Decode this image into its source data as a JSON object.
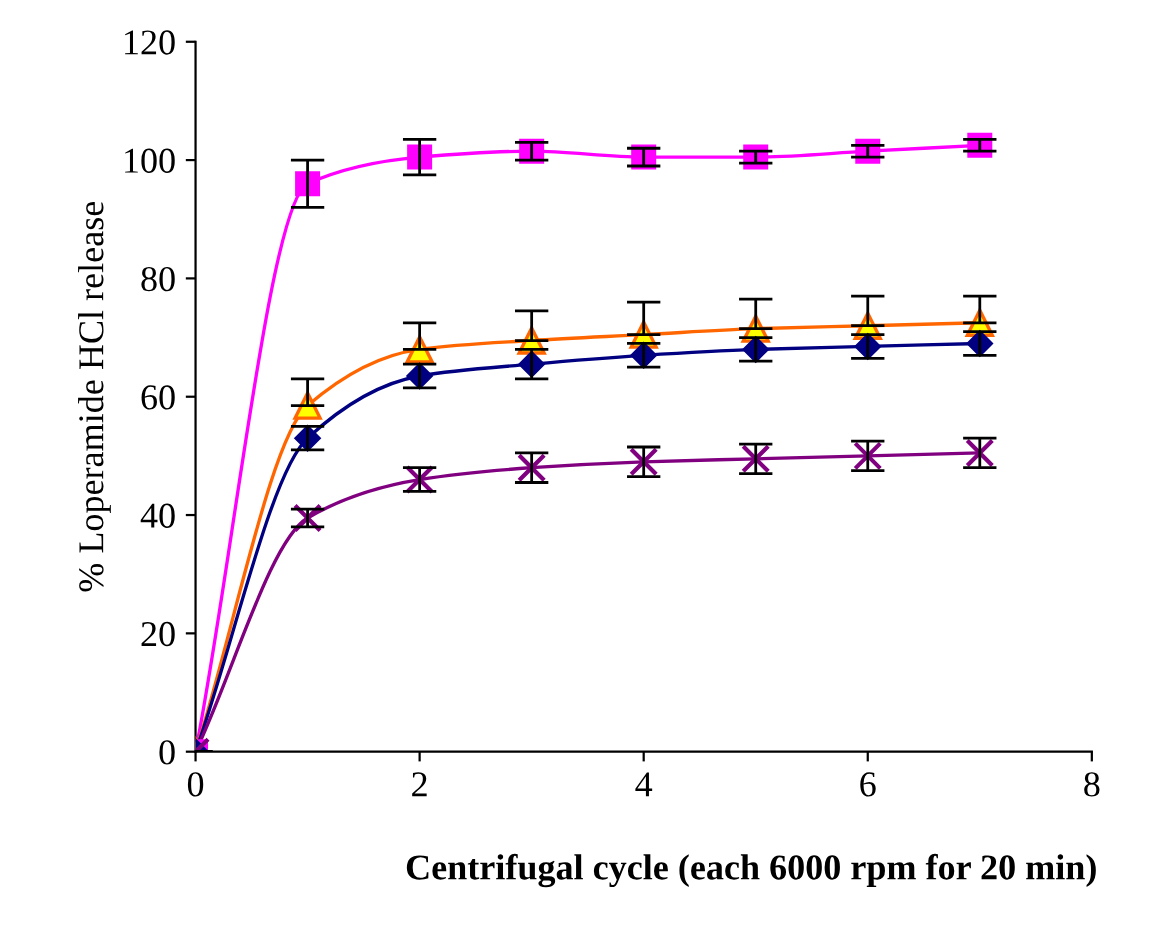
{
  "chart_data": {
    "type": "line",
    "xlabel": "Centrifugal cycle (each 6000 rpm for 20 min)",
    "ylabel": "% Loperamide HCl release",
    "x": [
      0,
      1,
      2,
      3,
      4,
      5,
      6,
      7
    ],
    "series": [
      {
        "color": "#ff00ff",
        "marker": "square",
        "values": [
          0,
          96,
          100.5,
          101.5,
          100.5,
          100.5,
          101.5,
          102.5
        ],
        "errors": [
          null,
          4,
          3,
          1.5,
          1.5,
          1,
          1,
          1
        ]
      },
      {
        "color": "#ff6600",
        "marker": "triangle",
        "values": [
          0,
          58.5,
          68,
          69.5,
          70.5,
          71.5,
          72,
          72.5
        ],
        "errors": [
          null,
          [
            58.5,
            63
          ],
          [
            68,
            72.5
          ],
          [
            69.5,
            74.5
          ],
          [
            70.5,
            76
          ],
          [
            71.5,
            76.5
          ],
          [
            72,
            77
          ],
          [
            72.5,
            77
          ]
        ]
      },
      {
        "color": "#000080",
        "marker": "diamond",
        "values": [
          0,
          53,
          63.5,
          65.5,
          67,
          68,
          68.5,
          69
        ],
        "errors": [
          null,
          2,
          2,
          2.5,
          2,
          2,
          2,
          2
        ]
      },
      {
        "color": "#800080",
        "marker": "cross",
        "values": [
          0,
          39.5,
          46,
          48,
          49,
          49.5,
          50,
          50.5
        ],
        "errors": [
          null,
          1.5,
          2,
          2.5,
          2.5,
          2.5,
          2.5,
          2.5
        ]
      }
    ],
    "xlim": [
      0,
      8
    ],
    "xticks": [
      0,
      2,
      4,
      6,
      8
    ],
    "ylim": [
      0,
      120
    ],
    "yticks": [
      0,
      20,
      40,
      60,
      80,
      100,
      120
    ],
    "grid": false,
    "legend": false
  }
}
